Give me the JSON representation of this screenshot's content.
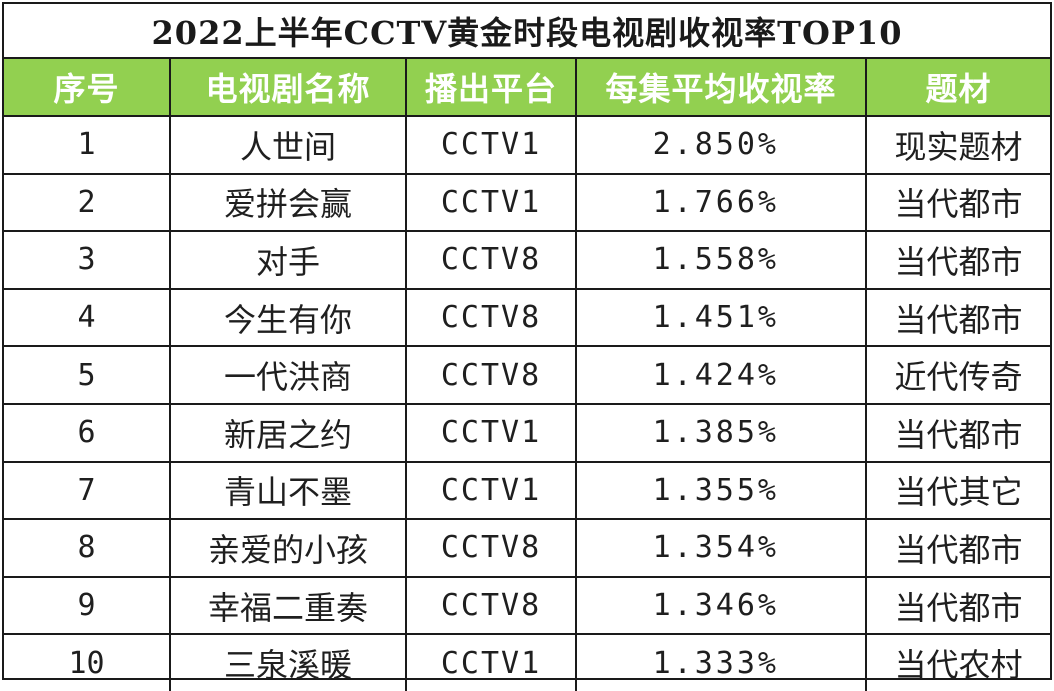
{
  "title": "2022上半年CCTV黄金时段电视剧收视率TOP10",
  "table": {
    "headers": [
      "序号",
      "电视剧名称",
      "播出平台",
      "每集平均收视率",
      "题材"
    ],
    "rows": [
      {
        "rank": "1",
        "name": "人世间",
        "platform": "CCTV1",
        "rating": "2.850%",
        "genre": "现实题材"
      },
      {
        "rank": "2",
        "name": "爱拼会赢",
        "platform": "CCTV1",
        "rating": "1.766%",
        "genre": "当代都市"
      },
      {
        "rank": "3",
        "name": "对手",
        "platform": "CCTV8",
        "rating": "1.558%",
        "genre": "当代都市"
      },
      {
        "rank": "4",
        "name": "今生有你",
        "platform": "CCTV8",
        "rating": "1.451%",
        "genre": "当代都市"
      },
      {
        "rank": "5",
        "name": "一代洪商",
        "platform": "CCTV8",
        "rating": "1.424%",
        "genre": "近代传奇"
      },
      {
        "rank": "6",
        "name": "新居之约",
        "platform": "CCTV1",
        "rating": "1.385%",
        "genre": "当代都市"
      },
      {
        "rank": "7",
        "name": "青山不墨",
        "platform": "CCTV1",
        "rating": "1.355%",
        "genre": "当代其它"
      },
      {
        "rank": "8",
        "name": "亲爱的小孩",
        "platform": "CCTV8",
        "rating": "1.354%",
        "genre": "当代都市"
      },
      {
        "rank": "9",
        "name": "幸福二重奏",
        "platform": "CCTV8",
        "rating": "1.346%",
        "genre": "当代都市"
      },
      {
        "rank": "10",
        "name": "三泉溪暖",
        "platform": "CCTV1",
        "rating": "1.333%",
        "genre": "当代农村"
      }
    ]
  },
  "colors": {
    "header_bg": "#92d050",
    "header_text": "#ffffff",
    "grid": "#1a1a1a"
  }
}
